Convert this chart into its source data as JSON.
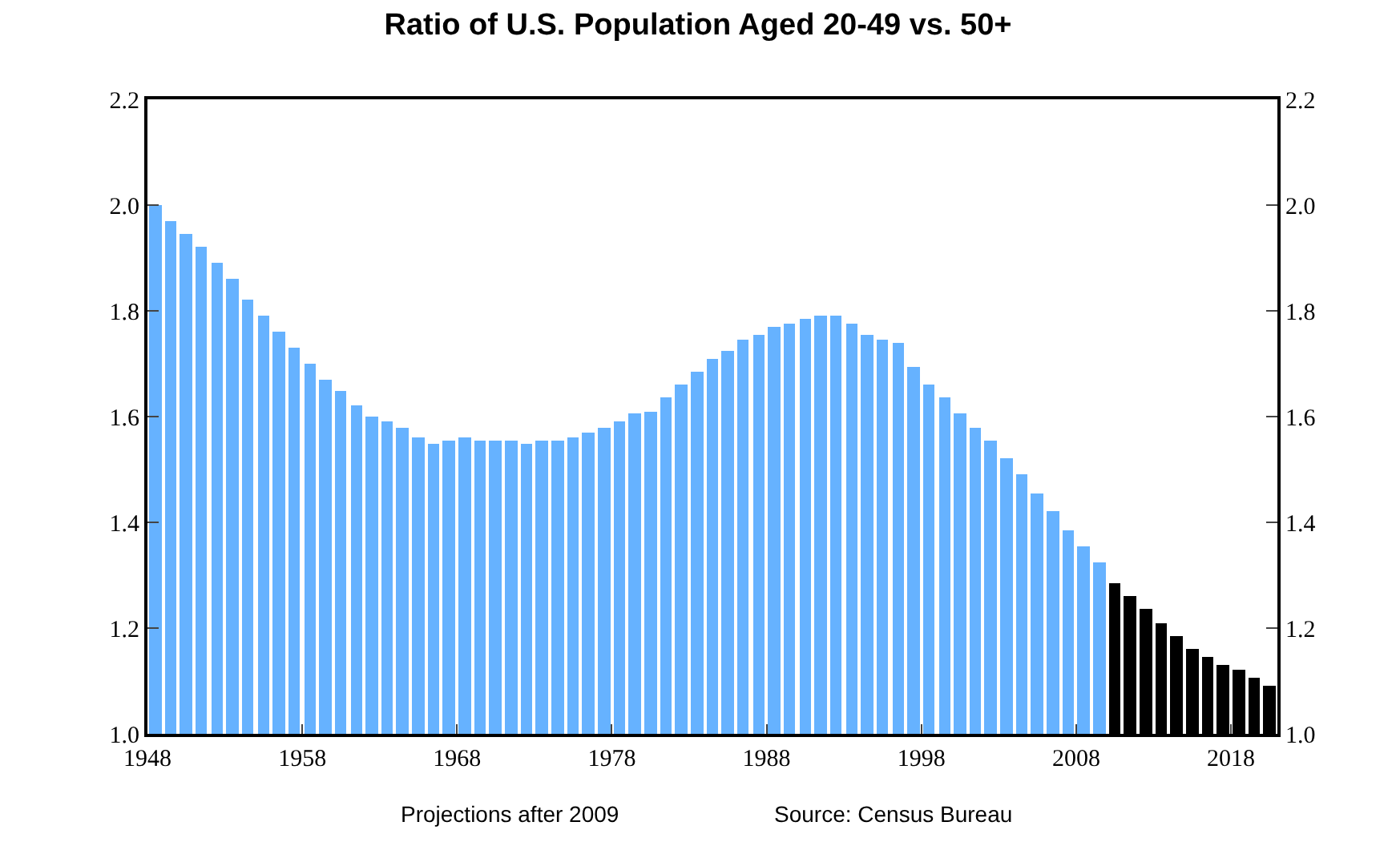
{
  "chart_data": {
    "type": "bar",
    "title": "Ratio of U.S. Population Aged 20-49 vs. 50+",
    "series": [
      {
        "color": "#66b2ff",
        "x": [
          1948,
          1949,
          1950,
          1951,
          1952,
          1953,
          1954,
          1955,
          1956,
          1957,
          1958,
          1959,
          1960,
          1961,
          1962,
          1963,
          1964,
          1965,
          1966,
          1967,
          1968,
          1969,
          1970,
          1971,
          1972,
          1973,
          1974,
          1975,
          1976,
          1977,
          1978,
          1979,
          1980,
          1981,
          1982,
          1983,
          1984,
          1985,
          1986,
          1987,
          1988,
          1989,
          1990,
          1991,
          1992,
          1993,
          1994,
          1995,
          1996,
          1997,
          1998,
          1999,
          2000,
          2001,
          2002,
          2003,
          2004,
          2005,
          2006,
          2007,
          2008,
          2009
        ],
        "values": [
          2.0,
          1.97,
          1.945,
          1.92,
          1.89,
          1.86,
          1.82,
          1.79,
          1.76,
          1.73,
          1.7,
          1.67,
          1.65,
          1.62,
          1.6,
          1.59,
          1.58,
          1.56,
          1.55,
          1.555,
          1.56,
          1.555,
          1.555,
          1.555,
          1.55,
          1.555,
          1.555,
          1.56,
          1.57,
          1.58,
          1.59,
          1.605,
          1.61,
          1.635,
          1.66,
          1.685,
          1.71,
          1.725,
          1.745,
          1.755,
          1.77,
          1.775,
          1.785,
          1.79,
          1.79,
          1.775,
          1.755,
          1.745,
          1.74,
          1.695,
          1.66,
          1.635,
          1.605,
          1.58,
          1.555,
          1.52,
          1.49,
          1.455,
          1.42,
          1.385,
          1.355,
          1.325
        ]
      },
      {
        "color": "#000000",
        "x": [
          2010,
          2011,
          2012,
          2013,
          2014,
          2015,
          2016,
          2017,
          2018,
          2019,
          2020
        ],
        "values": [
          1.285,
          1.26,
          1.235,
          1.21,
          1.185,
          1.16,
          1.145,
          1.13,
          1.12,
          1.105,
          1.09
        ]
      }
    ],
    "xlim": [
      1948,
      2021
    ],
    "xticks": [
      1948,
      1958,
      1968,
      1978,
      1988,
      1998,
      2008,
      2018
    ],
    "ylim": [
      1.0,
      2.2
    ],
    "yticks": [
      {
        "value": 1.0,
        "label": "1.0"
      },
      1.2,
      1.4,
      1.6,
      1.8,
      {
        "value": 2.0,
        "label": "2.0"
      },
      2.2
    ],
    "y2lim": [
      1.0,
      2.2
    ],
    "y2ticks": [
      {
        "value": 1.0,
        "label": "1.0"
      },
      1.2,
      1.4,
      1.6,
      1.8,
      {
        "value": 2.0,
        "label": "2.0"
      },
      2.2
    ],
    "annotations": [
      "Projections after 2009",
      "Source: Census Bureau"
    ]
  }
}
